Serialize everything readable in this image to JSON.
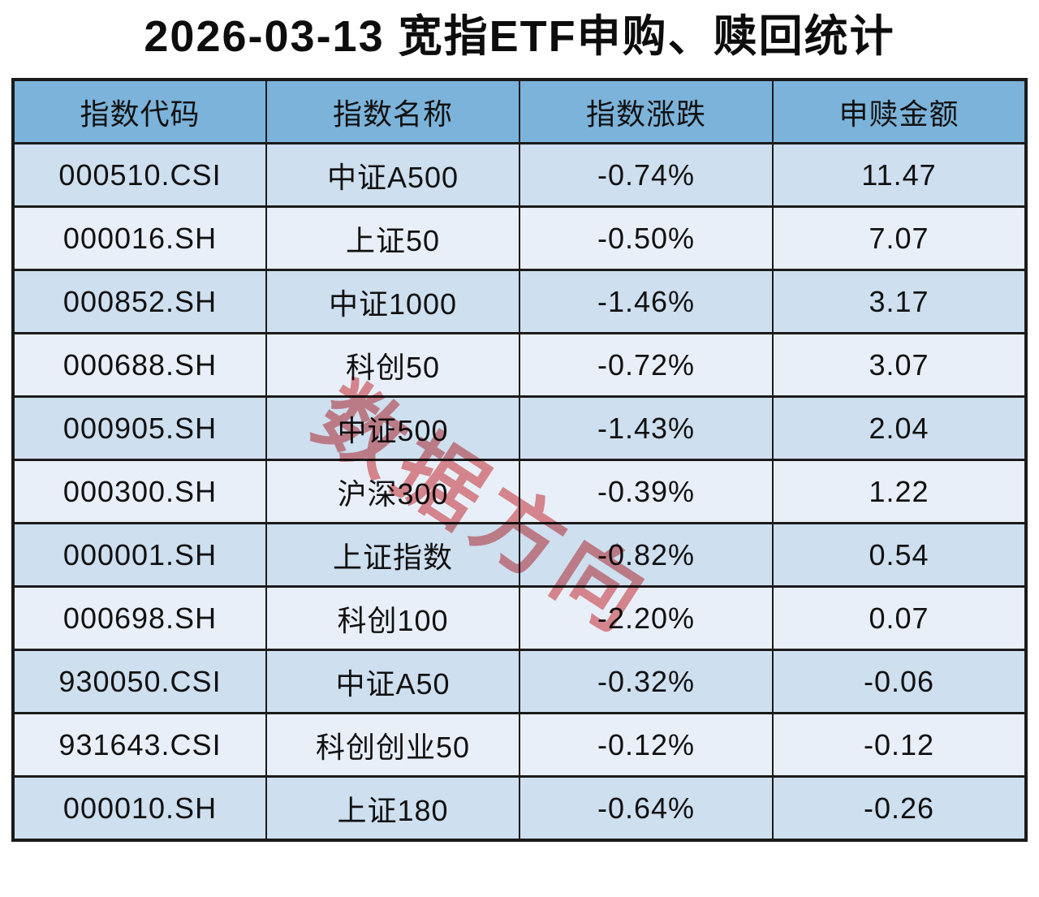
{
  "title": "2026-03-13 宽指ETF申购、赎回统计",
  "watermark_text": "数据方向",
  "colors": {
    "header_bg": "#7cb3da",
    "row_odd_bg": "#cedfef",
    "row_even_bg": "#e9eff8",
    "border": "#1b1b1b",
    "watermark": "#d9474b"
  },
  "chart_data": {
    "type": "table",
    "title": "2026-03-13 宽指ETF申购、赎回统计",
    "columns": [
      "指数代码",
      "指数名称",
      "指数涨跌",
      "申赎金额"
    ],
    "column_keys": [
      "index-code",
      "index-name",
      "index-change",
      "flow-amount"
    ],
    "rows": [
      [
        "000510.CSI",
        "中证A500",
        "-0.74%",
        "11.47"
      ],
      [
        "000016.SH",
        "上证50",
        "-0.50%",
        "7.07"
      ],
      [
        "000852.SH",
        "中证1000",
        "-1.46%",
        "3.17"
      ],
      [
        "000688.SH",
        "科创50",
        "-0.72%",
        "3.07"
      ],
      [
        "000905.SH",
        "中证500",
        "-1.43%",
        "2.04"
      ],
      [
        "000300.SH",
        "沪深300",
        "-0.39%",
        "1.22"
      ],
      [
        "000001.SH",
        "上证指数",
        "-0.82%",
        "0.54"
      ],
      [
        "000698.SH",
        "科创100",
        "-2.20%",
        "0.07"
      ],
      [
        "930050.CSI",
        "中证A50",
        "-0.32%",
        "-0.06"
      ],
      [
        "931643.CSI",
        "科创创业50",
        "-0.12%",
        "-0.12"
      ],
      [
        "000010.SH",
        "上证180",
        "-0.64%",
        "-0.26"
      ]
    ]
  }
}
